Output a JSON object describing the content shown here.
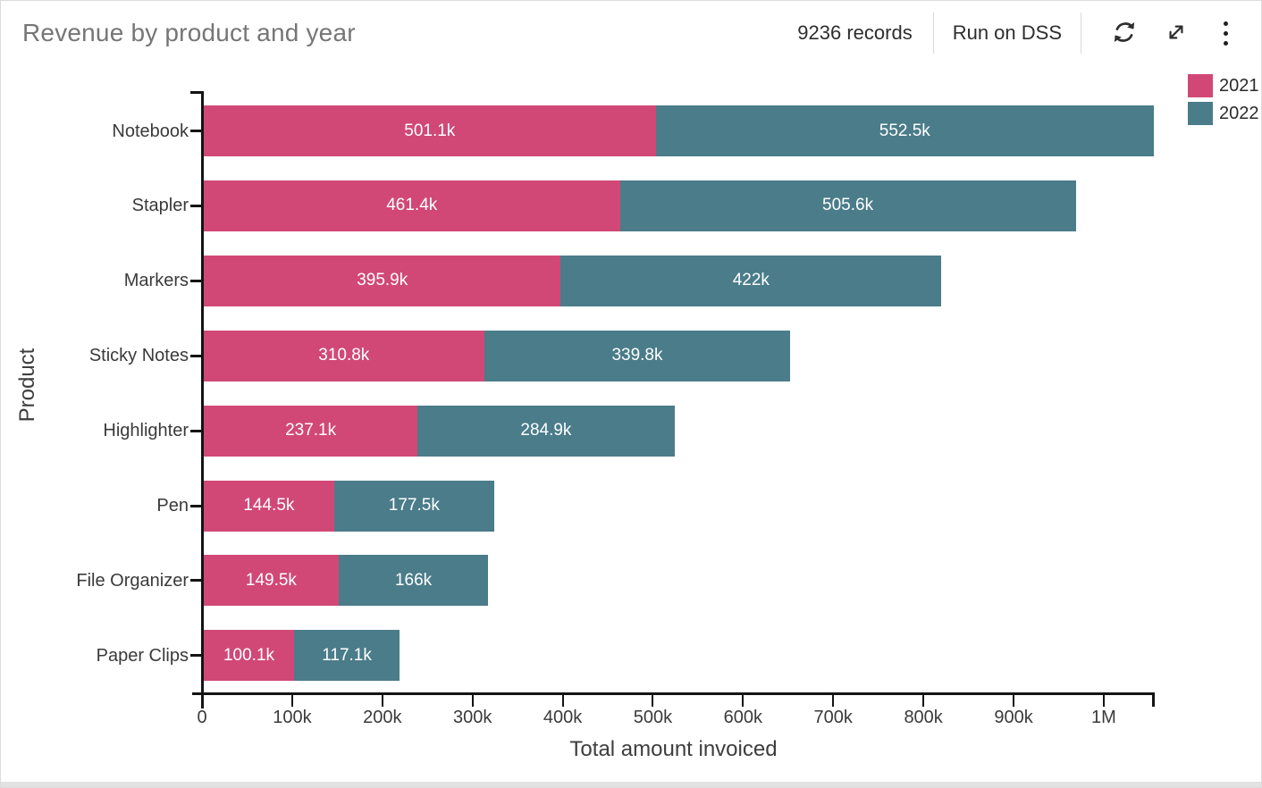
{
  "header": {
    "title": "Revenue by product and year",
    "records": "9236 records",
    "run_label": "Run on DSS",
    "icons": [
      "refresh-icon",
      "expand-icon",
      "kebab-menu-icon"
    ]
  },
  "colors": {
    "series_2021": "#d14876",
    "series_2022": "#4a7c8a",
    "axis": "#141414",
    "title_gray": "#767676",
    "text_dark": "#2e2e2e"
  },
  "chart_data": {
    "type": "bar",
    "orientation": "horizontal",
    "stacked": true,
    "title": "Revenue by product and year",
    "xlabel": "Total amount invoiced",
    "ylabel": "Product",
    "grid": false,
    "legend_position": "top-right",
    "categories": [
      "Notebook",
      "Stapler",
      "Markers",
      "Sticky Notes",
      "Highlighter",
      "Pen",
      "File Organizer",
      "Paper Clips"
    ],
    "series": [
      {
        "name": "2021",
        "color": "#d14876",
        "values_k": [
          501.1,
          461.4,
          395.9,
          310.8,
          237.1,
          144.5,
          149.5,
          100.1
        ],
        "labels": [
          "501.1k",
          "461.4k",
          "395.9k",
          "310.8k",
          "237.1k",
          "144.5k",
          "149.5k",
          "100.1k"
        ]
      },
      {
        "name": "2022",
        "color": "#4a7c8a",
        "values_k": [
          552.5,
          505.6,
          422,
          339.8,
          284.9,
          177.5,
          166,
          117.1
        ],
        "labels": [
          "552.5k",
          "505.6k",
          "422k",
          "339.8k",
          "284.9k",
          "177.5k",
          "166k",
          "117.1k"
        ]
      }
    ],
    "totals_k": [
      1053.6,
      967.0,
      817.9,
      650.6,
      522.0,
      322.0,
      315.5,
      217.2
    ],
    "xlim_k": [
      0,
      1053.6
    ],
    "x_ticks": [
      {
        "value_k": 0,
        "label": "0"
      },
      {
        "value_k": 100,
        "label": "100k"
      },
      {
        "value_k": 200,
        "label": "200k"
      },
      {
        "value_k": 300,
        "label": "300k"
      },
      {
        "value_k": 400,
        "label": "400k"
      },
      {
        "value_k": 500,
        "label": "500k"
      },
      {
        "value_k": 600,
        "label": "600k"
      },
      {
        "value_k": 700,
        "label": "700k"
      },
      {
        "value_k": 800,
        "label": "800k"
      },
      {
        "value_k": 900,
        "label": "900k"
      },
      {
        "value_k": 1000,
        "label": "1M"
      }
    ]
  }
}
